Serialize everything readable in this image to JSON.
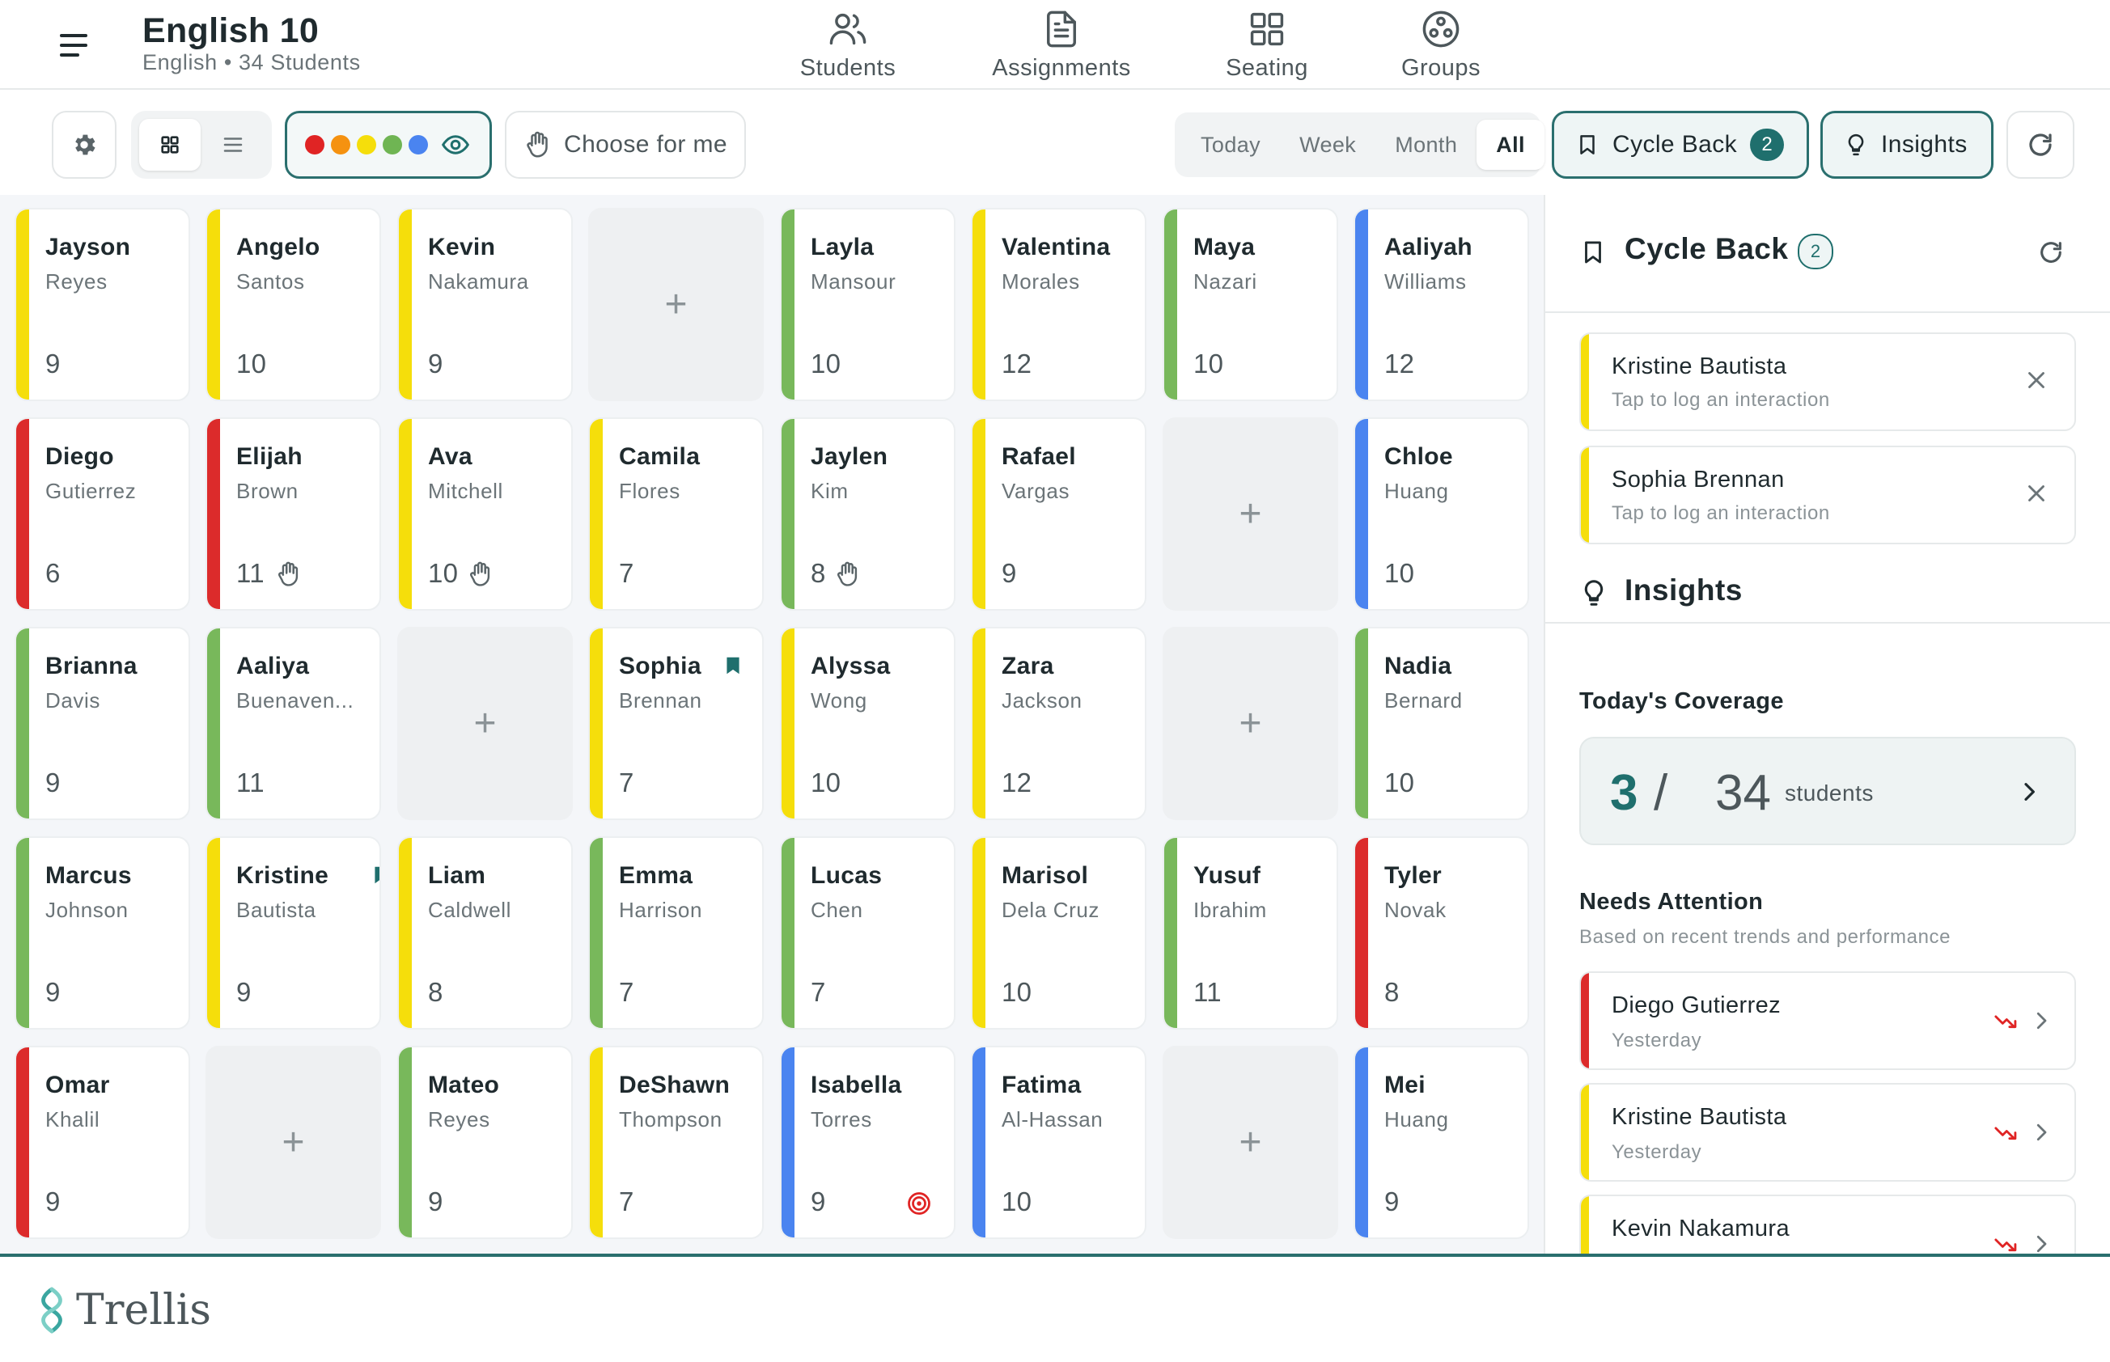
{
  "header": {
    "title": "English 10",
    "subtitle": "English • 34 Students",
    "nav": [
      {
        "label": "Students",
        "icon": "users-icon"
      },
      {
        "label": "Assignments",
        "icon": "document-icon"
      },
      {
        "label": "Seating",
        "icon": "grid-icon"
      },
      {
        "label": "Groups",
        "icon": "groups-icon"
      }
    ]
  },
  "toolbar": {
    "choose_label": "Choose for me",
    "color_filter": [
      "#e02424",
      "#f59210",
      "#f5de0b",
      "#6fb553",
      "#4a84f0"
    ],
    "ranges": [
      "Today",
      "Week",
      "Month",
      "All"
    ],
    "active_range": "All",
    "cycle_back_label": "Cycle Back",
    "cycle_back_count": "2",
    "insights_label": "Insights"
  },
  "colors": {
    "red": "#dc2b2b",
    "yellow": "#f5de0b",
    "green": "#78b85b",
    "blue": "#4a84f0",
    "accent": "#1f6f6d"
  },
  "seats": [
    {
      "first": "Jayson",
      "last": "Reyes",
      "grade": "9",
      "color": "yellow"
    },
    {
      "first": "Angelo",
      "last": "Santos",
      "grade": "10",
      "color": "yellow"
    },
    {
      "first": "Kevin",
      "last": "Nakamura",
      "grade": "9",
      "color": "yellow"
    },
    {
      "empty": true
    },
    {
      "first": "Layla",
      "last": "Mansour",
      "grade": "10",
      "color": "green"
    },
    {
      "first": "Valentina",
      "last": "Morales",
      "grade": "12",
      "color": "yellow"
    },
    {
      "first": "Maya",
      "last": "Nazari",
      "grade": "10",
      "color": "green"
    },
    {
      "first": "Aaliyah",
      "last": "Williams",
      "grade": "12",
      "color": "blue"
    },
    {
      "first": "Diego",
      "last": "Gutierrez",
      "grade": "6",
      "color": "red"
    },
    {
      "first": "Elijah",
      "last": "Brown",
      "grade": "11",
      "color": "red",
      "hand": true
    },
    {
      "first": "Ava",
      "last": "Mitchell",
      "grade": "10",
      "color": "yellow",
      "hand": true
    },
    {
      "first": "Camila",
      "last": "Flores",
      "grade": "7",
      "color": "yellow"
    },
    {
      "first": "Jaylen",
      "last": "Kim",
      "grade": "8",
      "color": "green",
      "hand": true
    },
    {
      "first": "Rafael",
      "last": "Vargas",
      "grade": "9",
      "color": "yellow"
    },
    {
      "empty": true
    },
    {
      "first": "Chloe",
      "last": "Huang",
      "grade": "10",
      "color": "blue"
    },
    {
      "first": "Brianna",
      "last": "Davis",
      "grade": "9",
      "color": "green"
    },
    {
      "first": "Aaliya",
      "last": "Buenaven...",
      "grade": "11",
      "color": "green"
    },
    {
      "empty": true
    },
    {
      "first": "Sophia",
      "last": "Brennan",
      "grade": "7",
      "color": "yellow",
      "bookmark": true
    },
    {
      "first": "Alyssa",
      "last": "Wong",
      "grade": "10",
      "color": "yellow"
    },
    {
      "first": "Zara",
      "last": "Jackson",
      "grade": "12",
      "color": "yellow"
    },
    {
      "empty": true
    },
    {
      "first": "Nadia",
      "last": "Bernard",
      "grade": "10",
      "color": "green"
    },
    {
      "first": "Marcus",
      "last": "Johnson",
      "grade": "9",
      "color": "green"
    },
    {
      "first": "Kristine",
      "last": "Bautista",
      "grade": "9",
      "color": "yellow",
      "bookmark": true
    },
    {
      "first": "Liam",
      "last": "Caldwell",
      "grade": "8",
      "color": "yellow"
    },
    {
      "first": "Emma",
      "last": "Harrison",
      "grade": "7",
      "color": "green"
    },
    {
      "first": "Lucas",
      "last": "Chen",
      "grade": "7",
      "color": "green"
    },
    {
      "first": "Marisol",
      "last": "Dela Cruz",
      "grade": "10",
      "color": "yellow"
    },
    {
      "first": "Yusuf",
      "last": "Ibrahim",
      "grade": "11",
      "color": "green"
    },
    {
      "first": "Tyler",
      "last": "Novak",
      "grade": "8",
      "color": "red"
    },
    {
      "first": "Omar",
      "last": "Khalil",
      "grade": "9",
      "color": "red"
    },
    {
      "empty": true
    },
    {
      "first": "Mateo",
      "last": "Reyes",
      "grade": "9",
      "color": "green"
    },
    {
      "first": "DeShawn",
      "last": "Thompson",
      "grade": "7",
      "color": "yellow"
    },
    {
      "first": "Isabella",
      "last": "Torres",
      "grade": "9",
      "color": "blue",
      "target": true
    },
    {
      "first": "Fatima",
      "last": "Al-Hassan",
      "grade": "10",
      "color": "blue"
    },
    {
      "empty": true
    },
    {
      "first": "Mei",
      "last": "Huang",
      "grade": "9",
      "color": "blue"
    }
  ],
  "sidebar": {
    "cycle_back": {
      "title": "Cycle Back",
      "count": "2",
      "items": [
        {
          "name": "Kristine Bautista",
          "hint": "Tap to log an interaction"
        },
        {
          "name": "Sophia Brennan",
          "hint": "Tap to log an interaction"
        }
      ]
    },
    "insights": {
      "title": "Insights",
      "coverage_label": "Today's Coverage",
      "covered": "3",
      "slash": "/",
      "total": "34",
      "unit": "students",
      "needs_attention_label": "Needs Attention",
      "needs_attention_sub": "Based on recent trends and performance",
      "needs_attention": [
        {
          "name": "Diego Gutierrez",
          "when": "Yesterday",
          "color": "red"
        },
        {
          "name": "Kristine Bautista",
          "when": "Yesterday",
          "color": "yellow"
        },
        {
          "name": "Kevin Nakamura",
          "when": "",
          "color": "yellow"
        }
      ]
    }
  },
  "footer": {
    "brand": "Trellis"
  }
}
